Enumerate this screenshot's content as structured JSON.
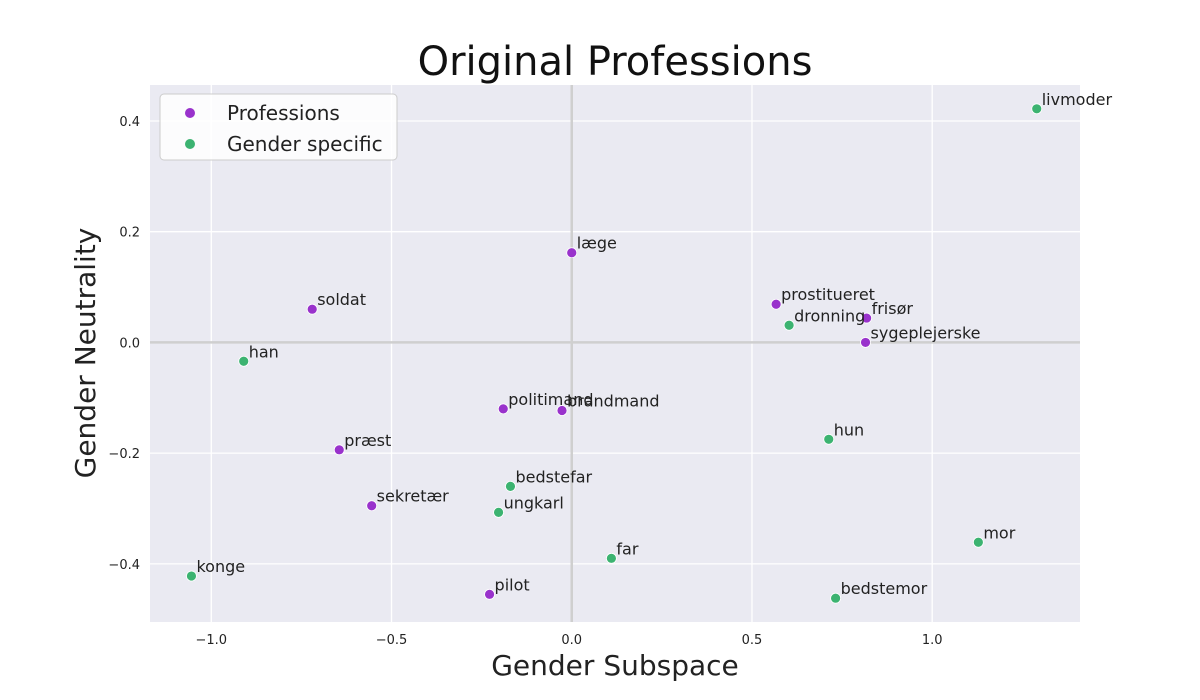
{
  "chart_data": {
    "type": "scatter",
    "title": "Original Professions",
    "xlabel": "Gender Subspace",
    "ylabel": "Gender Neutrality",
    "xlim": [
      -1.17,
      1.41
    ],
    "ylim": [
      -0.505,
      0.465
    ],
    "xticks": [
      -1.0,
      -0.5,
      0.0,
      0.5,
      1.0
    ],
    "xtick_labels": [
      "−1.0",
      "−0.5",
      "0.0",
      "0.5",
      "1.0"
    ],
    "yticks": [
      -0.4,
      -0.2,
      0.0,
      0.2,
      0.4
    ],
    "ytick_labels": [
      "−0.4",
      "−0.2",
      "0.0",
      "0.2",
      "0.4"
    ],
    "grid": true,
    "zero_lines": true,
    "legend_position": "top-left",
    "series": [
      {
        "name": "Professions",
        "color": "#9932CC",
        "points": [
          {
            "label": "læge",
            "x": 0.0,
            "y": 0.162
          },
          {
            "label": "soldat",
            "x": -0.72,
            "y": 0.06
          },
          {
            "label": "prostitueret",
            "x": 0.567,
            "y": 0.069
          },
          {
            "label": "frisør",
            "x": 0.818,
            "y": 0.044
          },
          {
            "label": "sygeplejerske",
            "x": 0.815,
            "y": 0.0
          },
          {
            "label": "politimand",
            "x": -0.19,
            "y": -0.12
          },
          {
            "label": "brandmand",
            "x": -0.027,
            "y": -0.123
          },
          {
            "label": "præst",
            "x": -0.645,
            "y": -0.194
          },
          {
            "label": "sekretær",
            "x": -0.555,
            "y": -0.295
          },
          {
            "label": "pilot",
            "x": -0.228,
            "y": -0.455
          }
        ]
      },
      {
        "name": "Gender specific",
        "color": "#3CB371",
        "points": [
          {
            "label": "livmoder",
            "x": 1.29,
            "y": 0.422
          },
          {
            "label": "dronning",
            "x": 0.603,
            "y": 0.031
          },
          {
            "label": "han",
            "x": -0.91,
            "y": -0.034
          },
          {
            "label": "hun",
            "x": 0.713,
            "y": -0.175
          },
          {
            "label": "bedstefar",
            "x": -0.17,
            "y": -0.26
          },
          {
            "label": "ungkarl",
            "x": -0.203,
            "y": -0.307
          },
          {
            "label": "far",
            "x": 0.11,
            "y": -0.39
          },
          {
            "label": "mor",
            "x": 1.128,
            "y": -0.361
          },
          {
            "label": "konge",
            "x": -1.055,
            "y": -0.422
          },
          {
            "label": "bedstemor",
            "x": 0.732,
            "y": -0.462
          }
        ]
      }
    ]
  }
}
